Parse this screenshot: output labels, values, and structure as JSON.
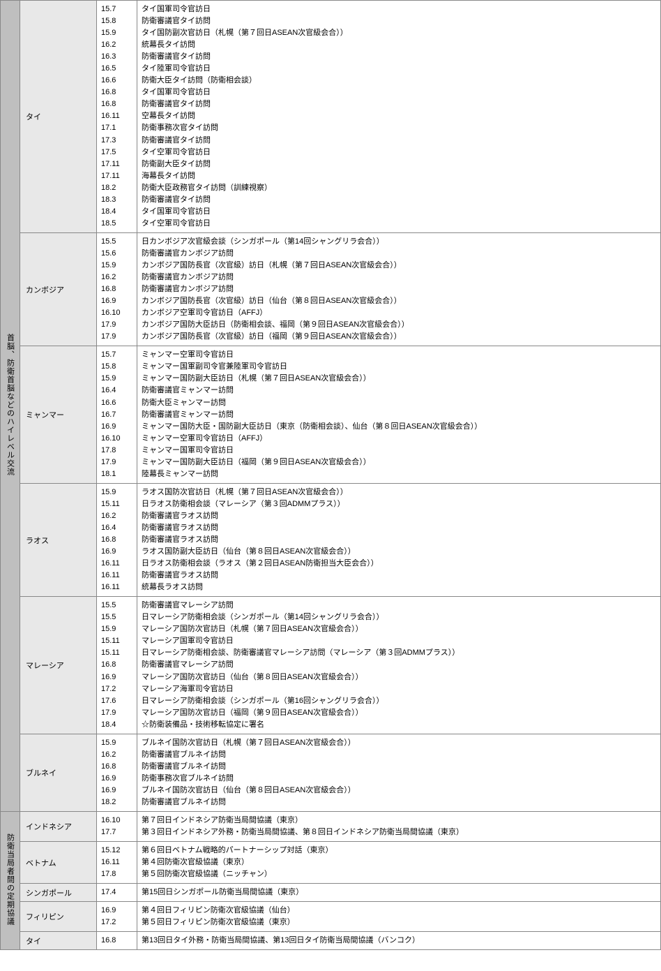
{
  "categories": [
    {
      "label": "首脳、防衛首脳などのハイレベル交流",
      "countries": [
        {
          "name": "タイ",
          "rows": [
            {
              "date": "15.7",
              "desc": "タイ国軍司令官訪日"
            },
            {
              "date": "15.8",
              "desc": "防衛審議官タイ訪問"
            },
            {
              "date": "15.9",
              "desc": "タイ国防副次官訪日（札幌（第７回日ASEAN次官級会合））"
            },
            {
              "date": "16.2",
              "desc": "統幕長タイ訪問"
            },
            {
              "date": "16.3",
              "desc": "防衛審議官タイ訪問"
            },
            {
              "date": "16.5",
              "desc": "タイ陸軍司令官訪日"
            },
            {
              "date": "16.6",
              "desc": "防衛大臣タイ訪問（防衛相会談）"
            },
            {
              "date": "16.8",
              "desc": "タイ国軍司令官訪日"
            },
            {
              "date": "16.8",
              "desc": "防衛審議官タイ訪問"
            },
            {
              "date": "16.11",
              "desc": "空幕長タイ訪問"
            },
            {
              "date": "17.1",
              "desc": "防衛事務次官タイ訪問"
            },
            {
              "date": "17.3",
              "desc": "防衛審議官タイ訪問"
            },
            {
              "date": "17.5",
              "desc": "タイ空軍司令官訪日"
            },
            {
              "date": "17.11",
              "desc": "防衛副大臣タイ訪問"
            },
            {
              "date": "17.11",
              "desc": "海幕長タイ訪問"
            },
            {
              "date": "18.2",
              "desc": "防衛大臣政務官タイ訪問（訓練視察）"
            },
            {
              "date": "18.3",
              "desc": "防衛審議官タイ訪問"
            },
            {
              "date": "18.4",
              "desc": "タイ国軍司令官訪日"
            },
            {
              "date": "18.5",
              "desc": "タイ空軍司令官訪日"
            }
          ]
        },
        {
          "name": "カンボジア",
          "rows": [
            {
              "date": "15.5",
              "desc": "日カンボジア次官級会談（シンガポール（第14回シャングリラ会合））"
            },
            {
              "date": "15.6",
              "desc": "防衛審議官カンボジア訪問"
            },
            {
              "date": "15.9",
              "desc": "カンボジア国防長官（次官級）訪日（札幌（第７回日ASEAN次官級会合））"
            },
            {
              "date": "16.2",
              "desc": "防衛審議官カンボジア訪問"
            },
            {
              "date": "16.8",
              "desc": "防衛審議官カンボジア訪問"
            },
            {
              "date": "16.9",
              "desc": "カンボジア国防長官（次官級）訪日（仙台（第８回日ASEAN次官級会合））"
            },
            {
              "date": "16.10",
              "desc": "カンボジア空軍司令官訪日（AFFJ）"
            },
            {
              "date": "17.9",
              "desc": "カンボジア国防大臣訪日（防衛相会談、福岡（第９回日ASEAN次官級会合））"
            },
            {
              "date": "17.9",
              "desc": "カンボジア国防長官（次官級）訪日（福岡（第９回日ASEAN次官級会合））"
            }
          ]
        },
        {
          "name": "ミャンマー",
          "rows": [
            {
              "date": "15.7",
              "desc": "ミャンマー空軍司令官訪日"
            },
            {
              "date": "15.8",
              "desc": "ミャンマー国軍副司令官兼陸軍司令官訪日"
            },
            {
              "date": "15.9",
              "desc": "ミャンマー国防副大臣訪日（札幌（第７回日ASEAN次官級会合））"
            },
            {
              "date": "16.4",
              "desc": "防衛審議官ミャンマー訪問"
            },
            {
              "date": "16.6",
              "desc": "防衛大臣ミャンマー訪問"
            },
            {
              "date": "16.7",
              "desc": "防衛審議官ミャンマー訪問"
            },
            {
              "date": "16.9",
              "desc": "ミャンマー国防大臣・国防副大臣訪日（東京（防衛相会談）、仙台（第８回日ASEAN次官級会合））"
            },
            {
              "date": "16.10",
              "desc": "ミャンマー空軍司令官訪日（AFFJ）"
            },
            {
              "date": "17.8",
              "desc": "ミャンマー国軍司令官訪日"
            },
            {
              "date": "17.9",
              "desc": "ミャンマー国防副大臣訪日（福岡（第９回日ASEAN次官級会合））"
            },
            {
              "date": "18.1",
              "desc": "陸幕長ミャンマー訪問"
            }
          ]
        },
        {
          "name": "ラオス",
          "rows": [
            {
              "date": "15.9",
              "desc": "ラオス国防次官訪日（札幌（第７回日ASEAN次官級会合））"
            },
            {
              "date": "15.11",
              "desc": "日ラオス防衛相会談（マレーシア（第３回ADMMプラス））"
            },
            {
              "date": "16.2",
              "desc": "防衛審議官ラオス訪問"
            },
            {
              "date": "16.4",
              "desc": "防衛審議官ラオス訪問"
            },
            {
              "date": "16.8",
              "desc": "防衛審議官ラオス訪問"
            },
            {
              "date": "16.9",
              "desc": "ラオス国防副大臣訪日（仙台（第８回日ASEAN次官級会合））"
            },
            {
              "date": "16.11",
              "desc": "日ラオス防衛相会談（ラオス（第２回日ASEAN防衛担当大臣会合））"
            },
            {
              "date": "16.11",
              "desc": "防衛審議官ラオス訪問"
            },
            {
              "date": "16.11",
              "desc": "統幕長ラオス訪問"
            }
          ]
        },
        {
          "name": "マレーシア",
          "rows": [
            {
              "date": "15.5",
              "desc": "防衛審議官マレーシア訪問"
            },
            {
              "date": "15.5",
              "desc": "日マレーシア防衛相会談（シンガポール（第14回シャングリラ会合））"
            },
            {
              "date": "15.9",
              "desc": "マレーシア国防次官訪日（札幌（第７回日ASEAN次官級会合））"
            },
            {
              "date": "15.11",
              "desc": "マレーシア国軍司令官訪日"
            },
            {
              "date": "15.11",
              "desc": "日マレーシア防衛相会談、防衛審議官マレーシア訪問（マレーシア（第３回ADMMプラス））"
            },
            {
              "date": "16.8",
              "desc": "防衛審議官マレーシア訪問"
            },
            {
              "date": "16.9",
              "desc": "マレーシア国防次官訪日（仙台（第８回日ASEAN次官級会合））"
            },
            {
              "date": "17.2",
              "desc": "マレーシア海軍司令官訪日"
            },
            {
              "date": "17.6",
              "desc": "日マレーシア防衛相会談（シンガポール（第16回シャングリラ会合））"
            },
            {
              "date": "17.9",
              "desc": "マレーシア国防次官訪日（福岡（第９回日ASEAN次官級会合））"
            },
            {
              "date": "18.4",
              "desc": "☆防衛装備品・技術移転協定に署名"
            }
          ]
        },
        {
          "name": "ブルネイ",
          "rows": [
            {
              "date": "15.9",
              "desc": "ブルネイ国防次官訪日（札幌（第７回日ASEAN次官級会合））"
            },
            {
              "date": "16.2",
              "desc": "防衛審議官ブルネイ訪問"
            },
            {
              "date": "16.8",
              "desc": "防衛審議官ブルネイ訪問"
            },
            {
              "date": "16.9",
              "desc": "防衛事務次官ブルネイ訪問"
            },
            {
              "date": "16.9",
              "desc": "ブルネイ国防次官訪日（仙台（第８回日ASEAN次官級会合））"
            },
            {
              "date": "18.2",
              "desc": "防衛審議官ブルネイ訪問"
            }
          ]
        }
      ]
    },
    {
      "label": "防衛当局者間の定期協議",
      "countries": [
        {
          "name": "インドネシア",
          "rows": [
            {
              "date": "16.10",
              "desc": "第７回日インドネシア防衛当局間協議（東京）"
            },
            {
              "date": "17.7",
              "desc": "第３回日インドネシア外務・防衛当局間協議、第８回日インドネシア防衛当局間協議（東京）"
            }
          ]
        },
        {
          "name": "ベトナム",
          "rows": [
            {
              "date": "15.12",
              "desc": "第６回日ベトナム戦略的パートナーシップ対話（東京）"
            },
            {
              "date": "16.11",
              "desc": "第４回防衛次官級協議（東京）"
            },
            {
              "date": "17.8",
              "desc": "第５回防衛次官級協議（ニッチャン）"
            }
          ]
        },
        {
          "name": "シンガポール",
          "rows": [
            {
              "date": "17.4",
              "desc": "第15回日シンガポール防衛当局間協議（東京）"
            }
          ]
        },
        {
          "name": "フィリピン",
          "rows": [
            {
              "date": "16.9",
              "desc": "第４回日フィリピン防衛次官級協議（仙台）"
            },
            {
              "date": "17.2",
              "desc": "第５回日フィリピン防衛次官級協議（東京）"
            }
          ]
        },
        {
          "name": "タイ",
          "rows": [
            {
              "date": "16.8",
              "desc": "第13回日タイ外務・防衛当局間協議、第13回日タイ防衛当局間協議（バンコク）"
            }
          ]
        }
      ]
    }
  ],
  "colors": {
    "category_bg": "#bfbfbf",
    "country_bg": "#e8e8e8",
    "border": "#888888"
  }
}
